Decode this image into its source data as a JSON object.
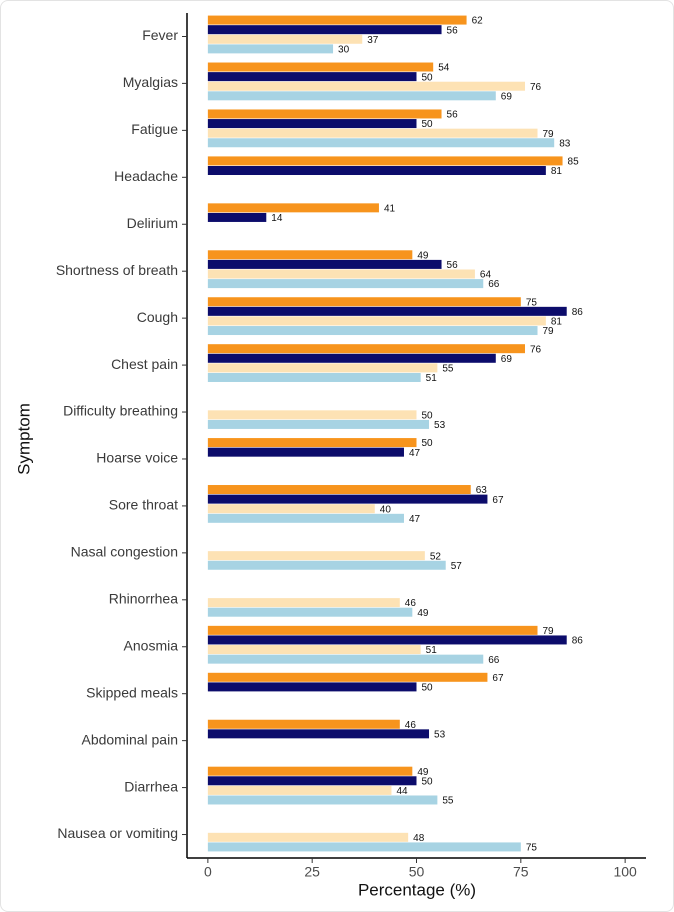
{
  "chart_data": {
    "type": "bar",
    "orientation": "horizontal",
    "x_label": "Percentage (%)",
    "y_label": "Symptom",
    "categories": [
      "Fever",
      "Myalgias",
      "Fatigue",
      "Headache",
      "Delirium",
      "Shortness of breath",
      "Cough",
      "Chest pain",
      "Difficulty breathing",
      "Hoarse voice",
      "Sore throat",
      "Nasal congestion",
      "Rhinorrhea",
      "Anosmia",
      "Skipped meals",
      "Abdominal pain",
      "Diarrhea",
      "Nausea or vomiting"
    ],
    "series": [
      {
        "color": "#f7941d",
        "values": [
          62,
          54,
          56,
          85,
          41,
          49,
          75,
          76,
          null,
          50,
          63,
          null,
          null,
          79,
          67,
          46,
          49,
          null
        ]
      },
      {
        "color": "#0c0c6b",
        "values": [
          56,
          50,
          50,
          81,
          14,
          56,
          86,
          69,
          null,
          47,
          67,
          null,
          null,
          86,
          50,
          53,
          50,
          null
        ]
      },
      {
        "color": "#fde2b4",
        "values": [
          37,
          76,
          79,
          null,
          null,
          64,
          81,
          55,
          50,
          null,
          40,
          52,
          46,
          51,
          null,
          null,
          44,
          48
        ]
      },
      {
        "color": "#a7d3e3",
        "values": [
          30,
          69,
          83,
          null,
          null,
          66,
          79,
          51,
          53,
          null,
          47,
          57,
          49,
          66,
          null,
          null,
          55,
          75
        ]
      }
    ],
    "xlim": [
      -5,
      105
    ],
    "xticks": [
      0,
      25,
      50,
      75,
      100
    ],
    "grid": false
  }
}
